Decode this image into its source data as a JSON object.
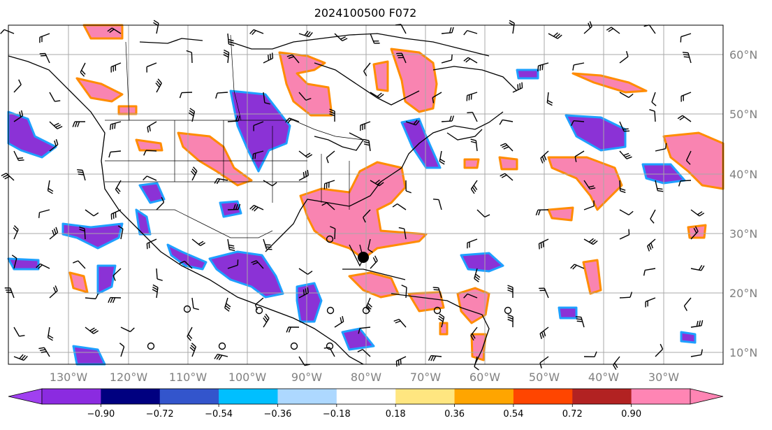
{
  "title": "2024100500 F072",
  "map": {
    "lat_labels": [
      "60°N",
      "50°N",
      "40°N",
      "30°N",
      "20°N",
      "10°N"
    ],
    "lon_labels": [
      "130°W",
      "120°W",
      "110°W",
      "100°W",
      "90°W",
      "80°W",
      "70°W",
      "60°W",
      "50°W",
      "40°W",
      "30°W"
    ]
  },
  "colorbar": {
    "colors": [
      "#a040f0",
      "#8b2be0",
      "#000080",
      "#3355cc",
      "#00bfff",
      "#add8ff",
      "#ffffff",
      "#ffe680",
      "#ffa500",
      "#ff4500",
      "#b22222",
      "#ff85b4",
      "#ff85b4"
    ],
    "tick_labels": [
      "−0.90",
      "−0.72",
      "−0.54",
      "−0.36",
      "−0.18",
      "0.18",
      "0.36",
      "0.54",
      "0.72",
      "0.90"
    ]
  },
  "field_colors": {
    "positive_fill": "#f984b1",
    "negative_fill": "#8b32d6",
    "positive_edge": "#ff8c00",
    "negative_edge": "#1ea0ff"
  }
}
